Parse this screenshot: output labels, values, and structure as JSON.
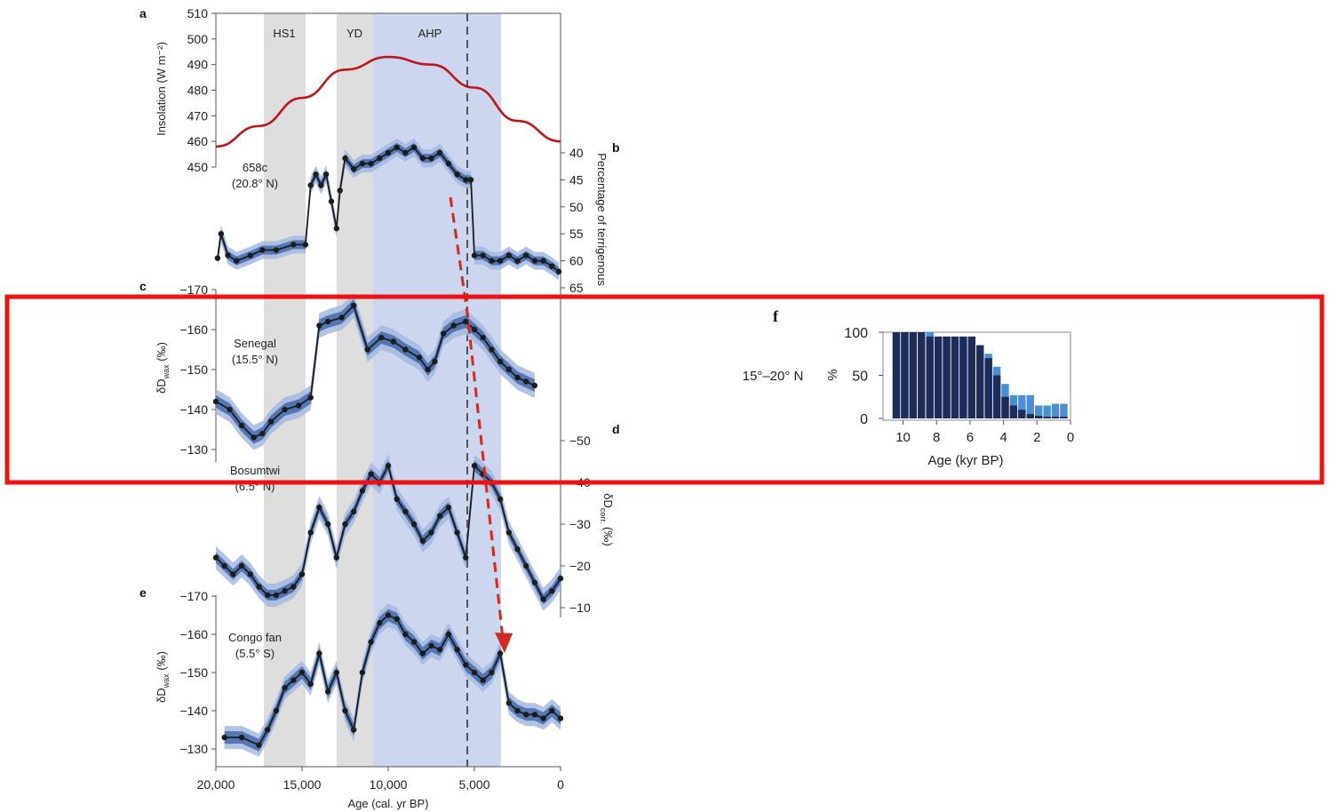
{
  "figure": {
    "highlight_color": "#ee1111",
    "band_colors": {
      "gray": "#dedede",
      "blue": "#ccd6ee",
      "curve_red": "#c0151c",
      "line_dark": "#1c1c1c",
      "band_dark": "#4a6faf",
      "band_light": "#a5b9de",
      "bar_dark": "#1d2c58",
      "bar_light": "#4a8fd4"
    }
  },
  "chart_data": [
    {
      "panel": "a",
      "type": "line",
      "ylabel": "Insolation (W m⁻²)",
      "ylim": [
        450,
        510
      ],
      "yticks": [
        "510",
        "500",
        "490",
        "480",
        "470",
        "460",
        "450"
      ],
      "x": [
        20000,
        17500,
        15000,
        12500,
        10000,
        7500,
        5000,
        2500,
        0
      ],
      "values": [
        458,
        466,
        477,
        488,
        493,
        490,
        481,
        468,
        460
      ],
      "color": "#c0151c"
    },
    {
      "panel": "b",
      "type": "line",
      "site": "658c",
      "site_coords": "(20.8° N)",
      "ylabel": "Percentage of terrigenous",
      "yticks": [
        "40",
        "45",
        "50",
        "55",
        "60",
        "65"
      ],
      "ylim": [
        65,
        38
      ],
      "x": [
        19900,
        19700,
        19300,
        18800,
        18000,
        17300,
        16500,
        15500,
        14800,
        14500,
        14200,
        13900,
        13600,
        13300,
        13000,
        12800,
        12500,
        12000,
        11500,
        11000,
        10500,
        10000,
        9500,
        9000,
        8500,
        8000,
        7500,
        7000,
        6500,
        6000,
        5500,
        5200,
        5000,
        4500,
        4000,
        3500,
        3000,
        2500,
        2000,
        1500,
        1000,
        500,
        100
      ],
      "values": [
        59.5,
        55,
        59,
        60,
        59,
        58,
        58,
        57,
        57,
        46,
        44,
        46,
        44,
        49,
        54,
        47,
        41,
        43,
        42,
        42,
        41,
        40,
        39,
        40,
        39,
        41,
        41,
        40,
        42,
        44,
        45,
        45,
        59,
        59,
        60,
        60,
        59,
        60,
        59,
        60,
        60,
        61,
        62
      ],
      "bands": [
        "HS1",
        "YD",
        "AHP"
      ]
    },
    {
      "panel": "c",
      "type": "line",
      "site": "Senegal",
      "site_coords": "(15.5° N)",
      "ylabel": "δD_wax (‰)",
      "yticks": [
        "-170",
        "-160",
        "-150",
        "-140",
        "-130"
      ],
      "ylim": [
        -127,
        -170
      ],
      "x": [
        20000,
        19200,
        18500,
        17800,
        17300,
        16800,
        16000,
        15200,
        14500,
        14000,
        13500,
        12700,
        12000,
        11200,
        10400,
        9700,
        9000,
        8200,
        7700,
        7300,
        6800,
        6200,
        5500,
        5000,
        4500,
        4000,
        3500,
        3000,
        2500,
        2000,
        1500
      ],
      "values": [
        -142,
        -140,
        -136,
        -133,
        -134,
        -137,
        -140,
        -141,
        -143,
        -161,
        -162,
        -163,
        -166,
        -155,
        -158,
        -157,
        -155,
        -153,
        -150,
        -152,
        -159,
        -161,
        -162,
        -160,
        -158,
        -155,
        -152,
        -150,
        -148,
        -147,
        -146
      ]
    },
    {
      "panel": "d",
      "type": "line",
      "site": "Bosumtwi",
      "site_coords": "(6.5° N)",
      "ylabel": "δD_corr. (‰)",
      "yticks": [
        "-50",
        "-40",
        "-30",
        "-20",
        "-10"
      ],
      "ylim": [
        -5,
        -55
      ],
      "x": [
        20000,
        19500,
        19000,
        18500,
        18000,
        17500,
        17000,
        16500,
        16000,
        15500,
        15000,
        14500,
        14000,
        13500,
        13000,
        12500,
        12000,
        11500,
        11000,
        10500,
        10000,
        9500,
        9000,
        8500,
        8000,
        7500,
        7000,
        6500,
        6000,
        5500,
        5000,
        4500,
        4000,
        3500,
        3000,
        2500,
        2000,
        1500,
        1000,
        500,
        0
      ],
      "values": [
        -22,
        -20,
        -18,
        -20,
        -18,
        -15,
        -13,
        -13,
        -14,
        -15,
        -18,
        -28,
        -34,
        -30,
        -22,
        -30,
        -33,
        -38,
        -42,
        -40,
        -44,
        -36,
        -33,
        -30,
        -26,
        -28,
        -32,
        -34,
        -28,
        -22,
        -44,
        -42,
        -40,
        -36,
        -28,
        -24,
        -20,
        -16,
        -12,
        -14,
        -17
      ]
    },
    {
      "panel": "e",
      "type": "line",
      "site": "Congo fan",
      "site_coords": "(5.5° S)",
      "ylabel": "δD_wax (‰)",
      "yticks": [
        "-170",
        "-160",
        "-150",
        "-140",
        "-130"
      ],
      "ylim": [
        -127,
        -172
      ],
      "xlabel": "Age (cal. yr BP)",
      "xticks": [
        "20,000",
        "15,000",
        "10,000",
        "5,000",
        "0"
      ],
      "x": [
        19500,
        18500,
        17500,
        17000,
        16500,
        16000,
        15500,
        15000,
        14500,
        14000,
        13500,
        13000,
        12500,
        12000,
        11500,
        11000,
        10500,
        10000,
        9500,
        9000,
        8500,
        8000,
        7500,
        7000,
        6500,
        6000,
        5500,
        5000,
        4500,
        4000,
        3500,
        3000,
        2500,
        2000,
        1500,
        1000,
        500,
        0
      ],
      "values": [
        -133,
        -133,
        -131,
        -135,
        -140,
        -146,
        -148,
        -150,
        -147,
        -155,
        -145,
        -150,
        -140,
        -135,
        -150,
        -158,
        -163,
        -165,
        -164,
        -160,
        -158,
        -155,
        -157,
        -156,
        -160,
        -156,
        -152,
        -150,
        -148,
        -150,
        -155,
        -142,
        -140,
        -139,
        -139,
        -138,
        -140,
        -138
      ]
    },
    {
      "panel": "f",
      "type": "bar",
      "region": "15°–20° N",
      "ylabel": "%",
      "xlabel": "Age (kyr BP)",
      "ylim": [
        0,
        100
      ],
      "yticks": [
        "100",
        "50",
        "0"
      ],
      "xticks": [
        "10",
        "8",
        "6",
        "4",
        "2",
        "0"
      ],
      "categories": [
        10.4,
        9.9,
        9.4,
        8.9,
        8.4,
        7.9,
        7.4,
        6.9,
        6.4,
        5.9,
        5.4,
        4.9,
        4.4,
        3.9,
        3.4,
        2.9,
        2.4,
        1.9,
        1.4,
        0.9,
        0.4
      ],
      "series": [
        {
          "values": [
            100,
            100,
            100,
            100,
            95,
            95,
            95,
            95,
            95,
            95,
            85,
            70,
            50,
            25,
            15,
            10,
            5,
            3,
            2,
            2,
            2
          ]
        },
        {
          "values": [
            100,
            100,
            100,
            100,
            100,
            95,
            95,
            95,
            95,
            95,
            85,
            75,
            60,
            40,
            27,
            27,
            27,
            15,
            15,
            17,
            17
          ]
        }
      ]
    }
  ],
  "labels": {
    "panel_a": "a",
    "panel_b": "b",
    "panel_c": "c",
    "panel_d": "d",
    "panel_e": "e",
    "panel_f": "f",
    "band_hs1": "HS1",
    "band_yd": "YD",
    "band_ahp": "AHP",
    "site_b_name": "658c",
    "site_b_coords": "(20.8° N)",
    "site_c_name": "Senegal",
    "site_c_coords": "(15.5° N)",
    "site_d_name": "Bosumtwi",
    "site_d_coords": "(6.5° N)",
    "site_e_name": "Congo fan",
    "site_e_coords": "(5.5° S)",
    "ylabel_a": "Insolation (W m⁻²)",
    "ylabel_b": "Percentage of terrigenous",
    "ylabel_c": "δD",
    "ylabel_c_sub": "wax",
    "ylabel_c_unit": " (‰)",
    "ylabel_d": "δD",
    "ylabel_d_sub": "corr.",
    "ylabel_d_unit": " (‰)",
    "ylabel_e": "δD",
    "ylabel_e_sub": "wax",
    "ylabel_e_unit": " (‰)",
    "xlabel_main": "Age (cal. yr BP)",
    "f_region": "15°–20° N",
    "f_ylabel": "%",
    "f_xlabel": "Age (kyr BP)"
  }
}
